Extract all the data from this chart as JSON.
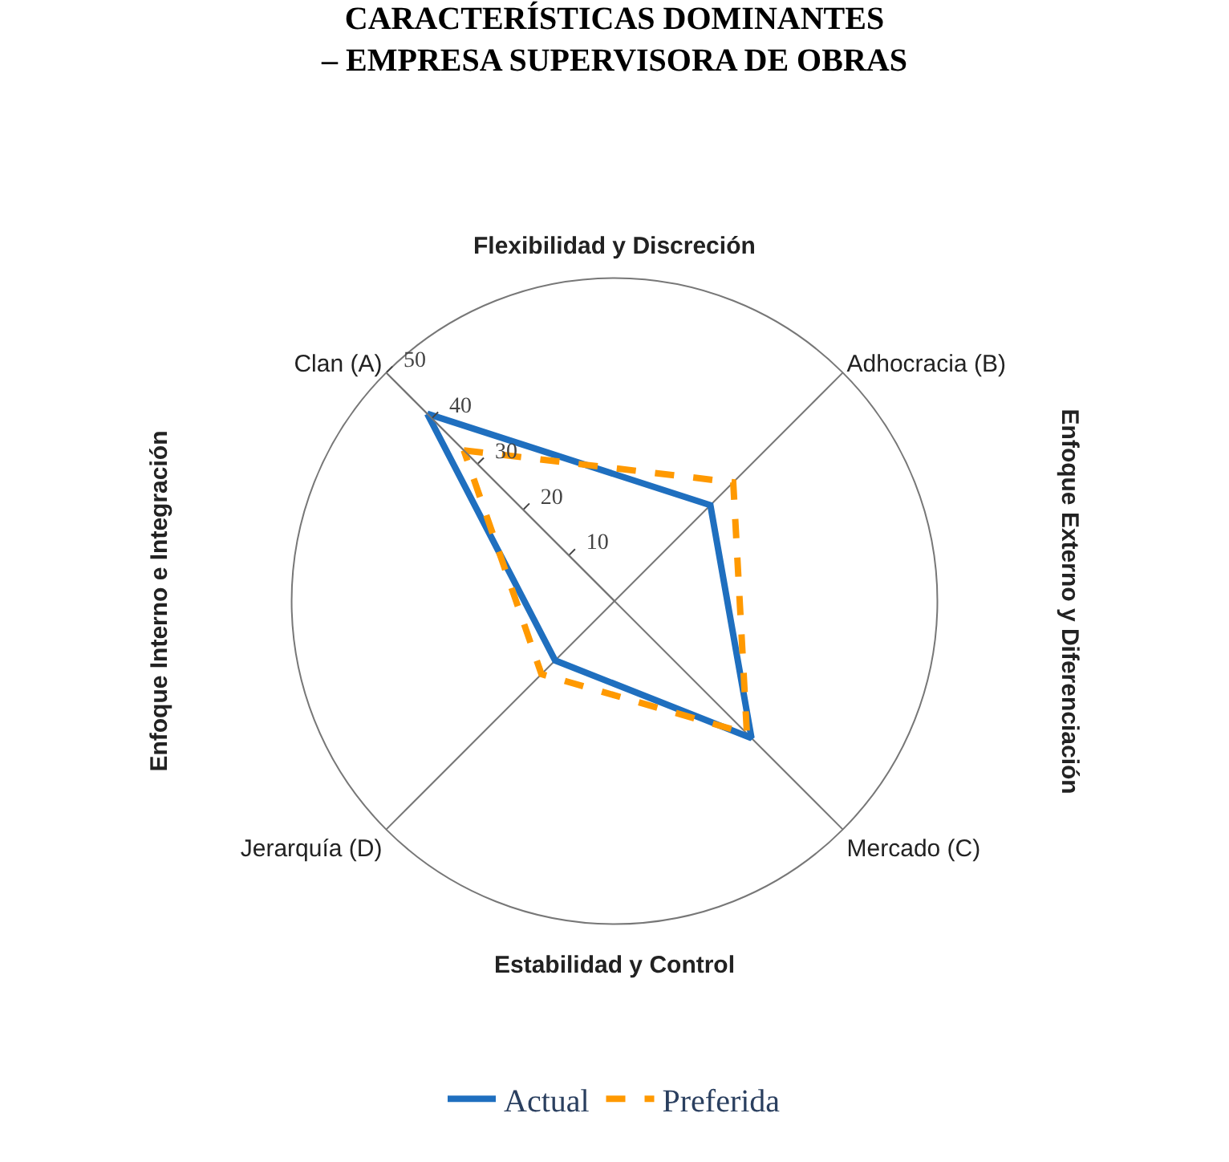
{
  "chart_data": {
    "type": "radar",
    "title": "CARACTERÍSTICAS DOMINANTES\n– EMPRESA SUPERVISORA DE OBRAS",
    "categories": [
      "Clan (A)",
      "Adhocracia (B)",
      "Mercado (C)",
      "Jerarquía (D)"
    ],
    "series": [
      {
        "name": "Actual",
        "color": "#1f6fbf",
        "values": [
          41,
          21,
          30,
          13
        ],
        "line_style": "solid"
      },
      {
        "name": "Preferida",
        "color": "#ff9900",
        "values": [
          33,
          26,
          29,
          16
        ],
        "line_style": "dashed"
      }
    ],
    "ylim": [
      0,
      50
    ],
    "yticks": [
      10,
      20,
      30,
      40,
      50
    ],
    "annotations": [
      "Flexibilidad y Discreción",
      "Estabilidad y Control",
      "Enfoque Interno e Integración",
      "Enfoque Externo y Diferenciación"
    ],
    "grid": "x",
    "legend": "bottom",
    "marker": "none"
  }
}
